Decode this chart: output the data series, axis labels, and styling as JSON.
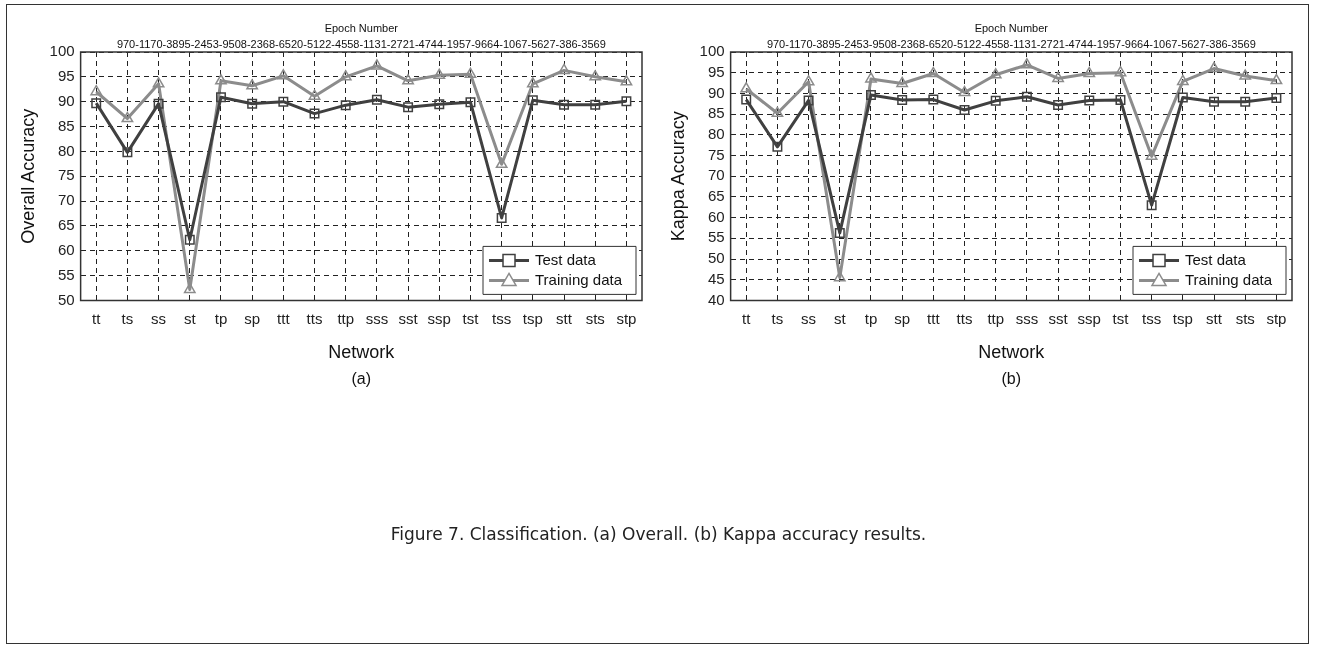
{
  "chart_data": [
    {
      "type": "line",
      "x2label": "Epoch Number",
      "xlabel": "Network",
      "ylabel": "Overall Accuracy",
      "annotations": [
        "970-1170-3895-2453-9508-2368-6520-5122-4558-1131-2721-4744-1957-9664-1067-5627-386-3569",
        "(a)",
        "Figure 7.  Classification. (a) Overall. (b) Kappa accuracy results."
      ],
      "categories": [
        "tt",
        "ts",
        "ss",
        "st",
        "tp",
        "sp",
        "ttt",
        "tts",
        "ttp",
        "sss",
        "sst",
        "ssp",
        "tst",
        "tss",
        "tsp",
        "stt",
        "sts",
        "stp"
      ],
      "series": [
        {
          "name": "Test data",
          "color": "#404040",
          "marker": "square",
          "values": [
            89.7,
            79.8,
            89.6,
            62.2,
            90.9,
            89.6,
            90.0,
            87.6,
            89.3,
            90.4,
            88.9,
            89.5,
            89.9,
            66.6,
            90.3,
            89.4,
            89.4,
            90.1
          ]
        },
        {
          "name": "Training data",
          "color": "#8c8c8c",
          "marker": "triangle",
          "values": [
            92.0,
            86.6,
            93.6,
            52.2,
            94.2,
            93.2,
            95.2,
            91.1,
            95.0,
            97.2,
            94.2,
            95.3,
            95.5,
            77.4,
            93.6,
            96.3,
            95.0,
            94.0
          ]
        }
      ],
      "ylim": [
        50,
        100
      ],
      "yticks": [
        50,
        55,
        60,
        65,
        70,
        75,
        80,
        85,
        90,
        95,
        100
      ],
      "grid": true,
      "legend": "bottom right",
      "line_style": "solid"
    },
    {
      "type": "line",
      "x2label": "Epoch Number",
      "xlabel": "Network",
      "ylabel": "Kappa Accuracy",
      "annotations": [
        "970-1170-3895-2453-9508-2368-6520-5122-4558-1131-2721-4744-1957-9664-1067-5627-386-3569",
        "(b)"
      ],
      "categories": [
        "tt",
        "ts",
        "ss",
        "st",
        "tp",
        "sp",
        "ttt",
        "tts",
        "ttp",
        "sss",
        "sst",
        "ssp",
        "tst",
        "tss",
        "tsp",
        "stt",
        "sts",
        "stp"
      ],
      "series": [
        {
          "name": "Test data",
          "color": "#404040",
          "marker": "square",
          "values": [
            88.5,
            77.1,
            88.3,
            56.3,
            89.6,
            88.4,
            88.5,
            86.0,
            88.2,
            89.2,
            87.2,
            88.3,
            88.4,
            63.0,
            89.0,
            88.0,
            88.0,
            88.9
          ]
        },
        {
          "name": "Training data",
          "color": "#8c8c8c",
          "marker": "triangle",
          "values": [
            91.1,
            85.2,
            92.8,
            45.5,
            93.5,
            92.4,
            94.8,
            90.2,
            94.5,
            96.9,
            93.6,
            94.8,
            95.0,
            74.8,
            92.9,
            96.0,
            94.2,
            93.1
          ]
        }
      ],
      "ylim": [
        40,
        100
      ],
      "yticks": [
        40,
        45,
        50,
        55,
        60,
        65,
        70,
        75,
        80,
        85,
        90,
        95,
        100
      ],
      "grid": true,
      "legend": "bottom right",
      "line_style": "solid"
    }
  ]
}
